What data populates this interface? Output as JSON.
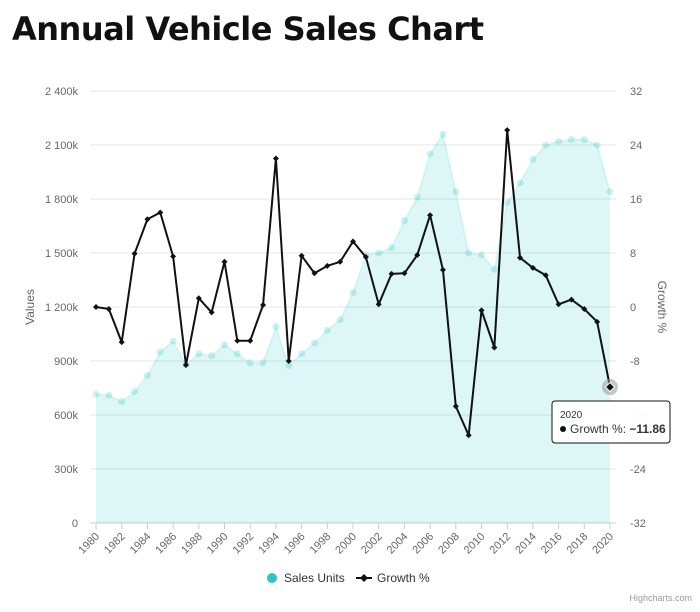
{
  "page": {
    "title": "Annual Vehicle Sales Chart"
  },
  "chart_data": {
    "type": "line",
    "title": "Annual Vehicle Sales Chart",
    "xlabel": "",
    "ylabel": "Values",
    "y2label": "Growth %",
    "x": [
      1980,
      1981,
      1982,
      1983,
      1984,
      1985,
      1986,
      1987,
      1988,
      1989,
      1990,
      1991,
      1992,
      1993,
      1994,
      1995,
      1996,
      1997,
      1998,
      1999,
      2000,
      2001,
      2002,
      2003,
      2004,
      2005,
      2006,
      2007,
      2008,
      2009,
      2010,
      2011,
      2012,
      2013,
      2014,
      2015,
      2016,
      2017,
      2018,
      2019,
      2020
    ],
    "x_ticks": [
      "1980",
      "1982",
      "1984",
      "1986",
      "1988",
      "1990",
      "1992",
      "1994",
      "1996",
      "1998",
      "2000",
      "2002",
      "2004",
      "2006",
      "2008",
      "2010",
      "2012",
      "2014",
      "2016",
      "2018",
      "2020"
    ],
    "ylim": [
      0,
      2400000
    ],
    "y_ticks": [
      "0",
      "300k",
      "600k",
      "900k",
      "1 200k",
      "1 500k",
      "1 800k",
      "2 100k",
      "2 400k"
    ],
    "y2lim": [
      -32,
      32
    ],
    "y2_ticks": [
      "-32",
      "-24",
      "-16",
      "-8",
      "0",
      "8",
      "16",
      "24",
      "32"
    ],
    "grid": true,
    "legend_position": "bottom-center",
    "series": [
      {
        "name": "Sales Units",
        "type": "area",
        "axis": "left",
        "color": "#2ec7c9",
        "values": [
          715000,
          710000,
          675000,
          730000,
          820000,
          950000,
          1010000,
          880000,
          940000,
          930000,
          990000,
          940000,
          890000,
          890000,
          1090000,
          875000,
          940000,
          1000000,
          1070000,
          1130000,
          1280000,
          1490000,
          1500000,
          1530000,
          1680000,
          1810000,
          2050000,
          2160000,
          1840000,
          1500000,
          1490000,
          1410000,
          1780000,
          1890000,
          2020000,
          2100000,
          2120000,
          2130000,
          2130000,
          2100000,
          1840000
        ]
      },
      {
        "name": "Growth %",
        "type": "line",
        "axis": "right",
        "color": "#111111",
        "values": [
          0.0,
          -0.3,
          -5.2,
          7.9,
          13.0,
          14.0,
          7.5,
          -8.6,
          1.3,
          -0.8,
          6.7,
          -5.0,
          -5.0,
          0.3,
          22.0,
          -8.0,
          7.6,
          5.0,
          6.1,
          6.7,
          9.7,
          7.4,
          0.4,
          4.9,
          5.0,
          7.7,
          13.6,
          5.5,
          -14.7,
          -19.0,
          -0.5,
          -6.0,
          26.2,
          7.3,
          5.8,
          4.7,
          0.4,
          1.1,
          -0.3,
          -2.2,
          -11.86
        ]
      }
    ],
    "tooltip": {
      "year": "2020",
      "series": "Growth %",
      "value": "−11.86"
    },
    "credits": "Highcharts.com"
  }
}
